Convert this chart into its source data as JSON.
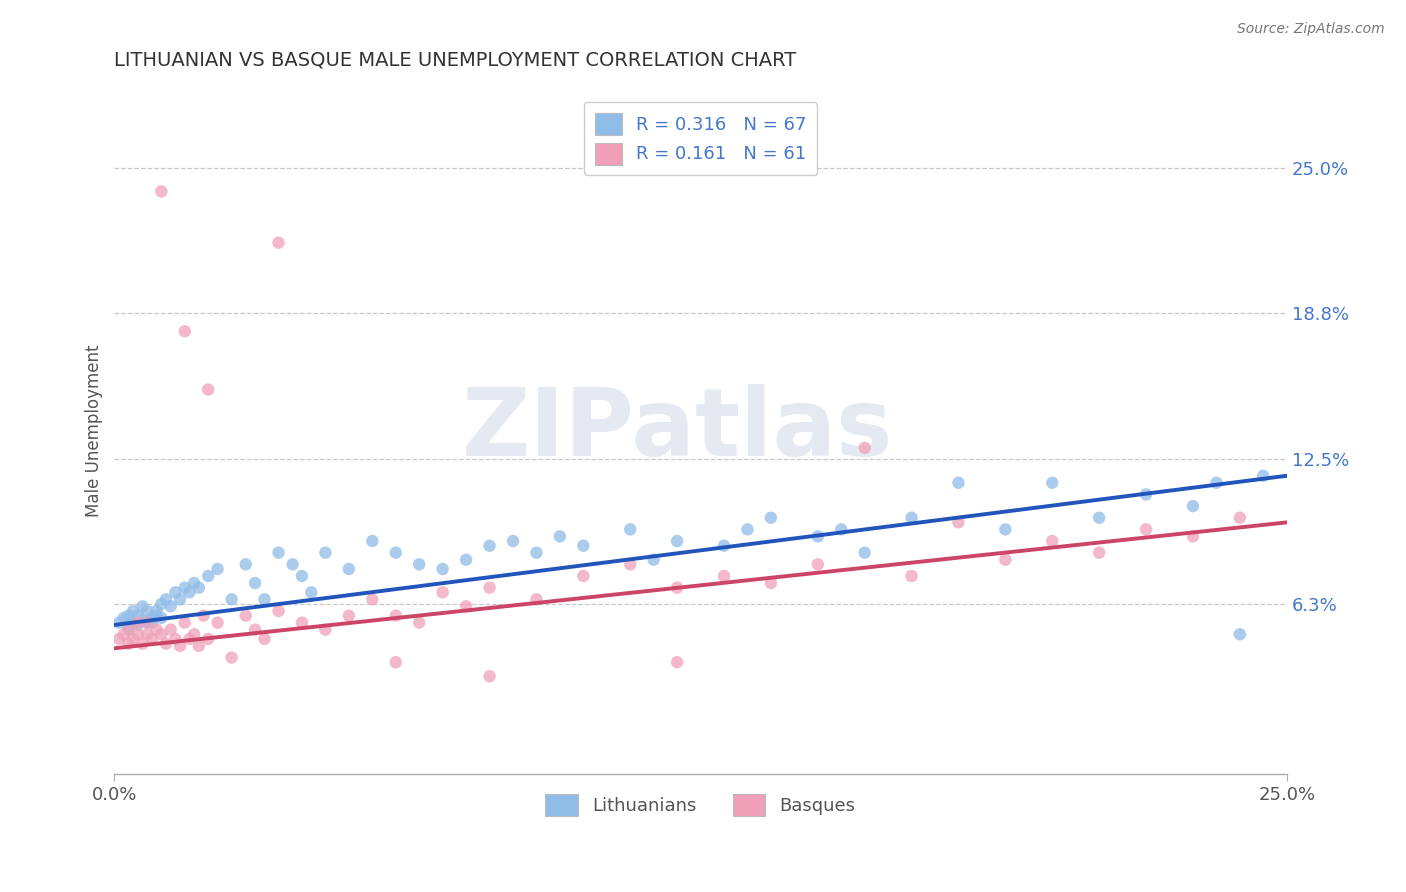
{
  "title": "LITHUANIAN VS BASQUE MALE UNEMPLOYMENT CORRELATION CHART",
  "source": "Source: ZipAtlas.com",
  "ylabel": "Male Unemployment",
  "xlim": [
    0.0,
    0.25
  ],
  "ylim": [
    -0.01,
    0.285
  ],
  "ytick_values": [
    0.063,
    0.125,
    0.188,
    0.25
  ],
  "ytick_labels": [
    "6.3%",
    "12.5%",
    "18.8%",
    "25.0%"
  ],
  "xtick_values": [
    0.0,
    0.25
  ],
  "xtick_labels": [
    "0.0%",
    "25.0%"
  ],
  "legend_labels": [
    "Lithuanians",
    "Basques"
  ],
  "scatter_color_blue": "#90bce8",
  "scatter_color_pink": "#f0a0b8",
  "line_color_blue": "#2255bb",
  "line_color_pink": "#cc4466",
  "background_color": "#ffffff",
  "grid_color": "#c8c8c8",
  "title_color": "#333333",
  "source_color": "#777777",
  "tick_color": "#4477cc",
  "watermark": "ZIPatlas",
  "blue_line_x": [
    0.0,
    0.25
  ],
  "blue_line_y": [
    0.054,
    0.118
  ],
  "pink_line_x": [
    0.0,
    0.25
  ],
  "pink_line_y": [
    0.044,
    0.098
  ],
  "blue_x": [
    0.001,
    0.002,
    0.003,
    0.003,
    0.004,
    0.004,
    0.005,
    0.005,
    0.006,
    0.006,
    0.007,
    0.007,
    0.008,
    0.008,
    0.009,
    0.009,
    0.01,
    0.01,
    0.011,
    0.012,
    0.013,
    0.014,
    0.015,
    0.016,
    0.017,
    0.018,
    0.02,
    0.022,
    0.025,
    0.028,
    0.03,
    0.032,
    0.035,
    0.038,
    0.04,
    0.042,
    0.045,
    0.05,
    0.055,
    0.06,
    0.065,
    0.07,
    0.075,
    0.08,
    0.085,
    0.09,
    0.095,
    0.1,
    0.11,
    0.115,
    0.12,
    0.13,
    0.135,
    0.14,
    0.15,
    0.155,
    0.16,
    0.17,
    0.18,
    0.19,
    0.2,
    0.21,
    0.22,
    0.23,
    0.235,
    0.24,
    0.245
  ],
  "blue_y": [
    0.055,
    0.057,
    0.053,
    0.058,
    0.055,
    0.06,
    0.054,
    0.058,
    0.056,
    0.062,
    0.055,
    0.06,
    0.057,
    0.055,
    0.06,
    0.058,
    0.063,
    0.057,
    0.065,
    0.062,
    0.068,
    0.065,
    0.07,
    0.068,
    0.072,
    0.07,
    0.075,
    0.078,
    0.065,
    0.08,
    0.072,
    0.065,
    0.085,
    0.08,
    0.075,
    0.068,
    0.085,
    0.078,
    0.09,
    0.085,
    0.08,
    0.078,
    0.082,
    0.088,
    0.09,
    0.085,
    0.092,
    0.088,
    0.095,
    0.082,
    0.09,
    0.088,
    0.095,
    0.1,
    0.092,
    0.095,
    0.085,
    0.1,
    0.115,
    0.095,
    0.115,
    0.1,
    0.11,
    0.105,
    0.115,
    0.05,
    0.118
  ],
  "pink_x": [
    0.001,
    0.002,
    0.003,
    0.003,
    0.004,
    0.005,
    0.005,
    0.006,
    0.007,
    0.007,
    0.008,
    0.009,
    0.01,
    0.011,
    0.012,
    0.013,
    0.014,
    0.015,
    0.016,
    0.017,
    0.018,
    0.019,
    0.02,
    0.022,
    0.025,
    0.028,
    0.03,
    0.032,
    0.035,
    0.04,
    0.045,
    0.05,
    0.055,
    0.06,
    0.065,
    0.07,
    0.075,
    0.08,
    0.09,
    0.1,
    0.11,
    0.12,
    0.13,
    0.14,
    0.15,
    0.16,
    0.17,
    0.18,
    0.19,
    0.2,
    0.21,
    0.22,
    0.23,
    0.24,
    0.12,
    0.08,
    0.06,
    0.035,
    0.02,
    0.015,
    0.01
  ],
  "pink_y": [
    0.048,
    0.05,
    0.046,
    0.052,
    0.048,
    0.05,
    0.055,
    0.046,
    0.05,
    0.055,
    0.048,
    0.052,
    0.05,
    0.046,
    0.052,
    0.048,
    0.045,
    0.055,
    0.048,
    0.05,
    0.045,
    0.058,
    0.048,
    0.055,
    0.04,
    0.058,
    0.052,
    0.048,
    0.06,
    0.055,
    0.052,
    0.058,
    0.065,
    0.058,
    0.055,
    0.068,
    0.062,
    0.07,
    0.065,
    0.075,
    0.08,
    0.07,
    0.075,
    0.072,
    0.08,
    0.13,
    0.075,
    0.098,
    0.082,
    0.09,
    0.085,
    0.095,
    0.092,
    0.1,
    0.038,
    0.032,
    0.038,
    0.218,
    0.155,
    0.18,
    0.24
  ]
}
